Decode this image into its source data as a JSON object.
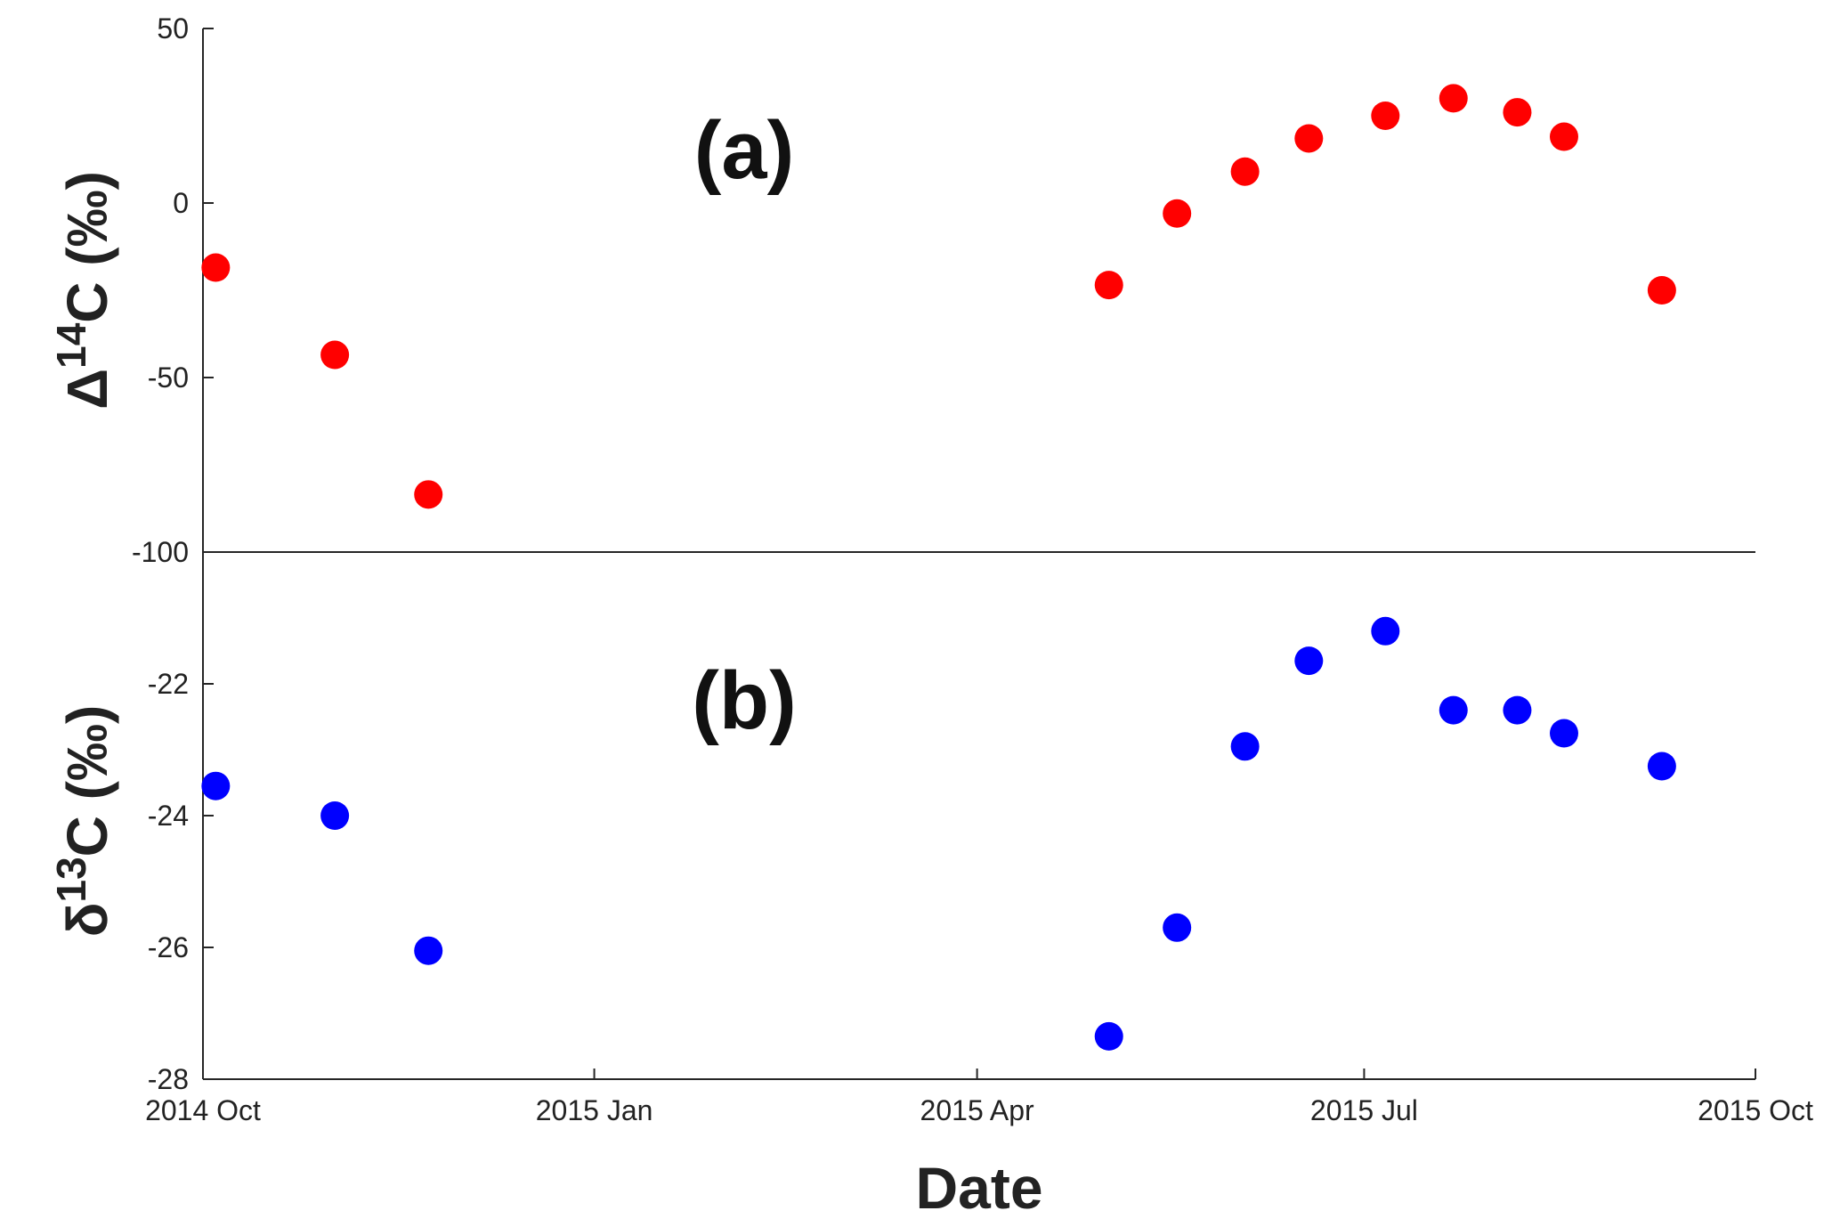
{
  "chart_data": [
    {
      "type": "scatter",
      "panel_label": "(a)",
      "ylabel": {
        "prefix": "Δ",
        "sup": "14",
        "rest": "C (‰)"
      },
      "ylim": [
        -100,
        50
      ],
      "yticks": [
        -100,
        -50,
        0,
        50
      ],
      "ytick_labels": [
        "-100",
        "-50",
        "0",
        "50"
      ],
      "grid": false,
      "color": "#ff0000",
      "series": [
        {
          "x": [
            "2014-10-04",
            "2014-11-01",
            "2014-11-23",
            "2015-05-02",
            "2015-05-18",
            "2015-06-03",
            "2015-06-18",
            "2015-07-06",
            "2015-07-22",
            "2015-08-06",
            "2015-08-17",
            "2015-09-09"
          ],
          "y": [
            -18.5,
            -43.5,
            -83.5,
            -23.5,
            -3,
            9,
            18.5,
            25,
            30,
            26,
            19,
            -25
          ]
        }
      ]
    },
    {
      "type": "scatter",
      "panel_label": "(b)",
      "ylabel": {
        "prefix": "δ",
        "sup": "13",
        "rest": "C (‰)"
      },
      "ylim": [
        -28,
        -20
      ],
      "yticks": [
        -28,
        -26,
        -24,
        -22
      ],
      "ytick_labels": [
        "-28",
        "-26",
        "-24",
        "-22"
      ],
      "grid": false,
      "color": "#0000ff",
      "series": [
        {
          "x": [
            "2014-10-04",
            "2014-11-01",
            "2014-11-23",
            "2015-05-02",
            "2015-05-18",
            "2015-06-03",
            "2015-06-18",
            "2015-07-06",
            "2015-07-22",
            "2015-08-06",
            "2015-08-17",
            "2015-09-09"
          ],
          "y": [
            -23.55,
            -24.0,
            -26.05,
            -27.35,
            -25.7,
            -22.95,
            -21.65,
            -21.2,
            -22.4,
            -22.4,
            -22.75,
            -23.25
          ]
        }
      ]
    }
  ],
  "x_axis": {
    "xlabel": "Date",
    "xlim": [
      "2014-10-01",
      "2015-10-01"
    ],
    "ticks": [
      "2014-10-01",
      "2015-01-01",
      "2015-04-01",
      "2015-07-01",
      "2015-10-01"
    ],
    "tick_labels": [
      "2014 Oct",
      "2015 Jan",
      "2015 Apr",
      "2015 Jul",
      "2015 Oct"
    ]
  }
}
